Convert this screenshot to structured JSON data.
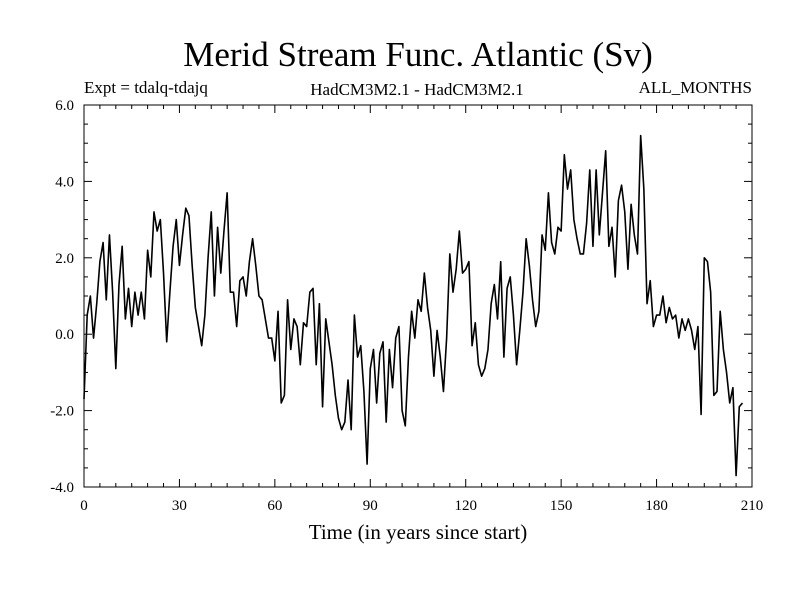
{
  "chart_data": {
    "type": "line",
    "title": "Merid Stream Func. Atlantic (Sv)",
    "subtitle_left": "Expt = tdalq-tdajq",
    "subtitle_center": "HadCM3M2.1 - HadCM3M2.1",
    "subtitle_right": "ALL_MONTHS",
    "xlabel": "Time (in years since start)",
    "ylabel": "",
    "xlim": [
      0,
      210
    ],
    "ylim": [
      -4,
      6
    ],
    "xticks": [
      0,
      30,
      60,
      90,
      120,
      150,
      180,
      210
    ],
    "xtick_labels": [
      "0",
      "30",
      "60",
      "90",
      "120",
      "150",
      "180",
      "210"
    ],
    "yticks": [
      -4,
      -2,
      0,
      2,
      4,
      6
    ],
    "ytick_labels": [
      "-4.0",
      "-2.0",
      "0.0",
      "2.0",
      "4.0",
      "6.0"
    ],
    "line_color": "#000000",
    "series": [
      {
        "name": "tdalq-tdajq",
        "x_start": 0,
        "x_step": 1,
        "values": [
          -1.7,
          0.5,
          1.0,
          -0.1,
          0.8,
          1.9,
          2.4,
          0.9,
          2.6,
          1.1,
          -0.9,
          1.3,
          2.3,
          0.4,
          1.2,
          0.2,
          1.1,
          0.5,
          1.1,
          0.4,
          2.2,
          1.5,
          3.2,
          2.7,
          3.0,
          1.6,
          -0.2,
          1.1,
          2.3,
          3.0,
          1.8,
          2.6,
          3.3,
          3.1,
          1.8,
          0.7,
          0.2,
          -0.3,
          0.5,
          2.0,
          3.2,
          1.0,
          2.8,
          1.6,
          2.7,
          3.7,
          1.1,
          1.1,
          0.2,
          1.4,
          1.5,
          1.0,
          1.9,
          2.5,
          1.8,
          1.0,
          0.9,
          0.4,
          -0.1,
          -0.1,
          -0.7,
          0.6,
          -1.8,
          -1.6,
          0.9,
          -0.4,
          0.4,
          0.2,
          -0.8,
          0.3,
          0.2,
          1.1,
          1.2,
          -0.8,
          0.8,
          -1.9,
          0.4,
          -0.2,
          -0.8,
          -1.6,
          -2.2,
          -2.5,
          -2.3,
          -1.2,
          -2.5,
          0.5,
          -0.6,
          -0.3,
          -1.5,
          -3.4,
          -0.9,
          -0.4,
          -1.8,
          -0.5,
          -0.2,
          -2.3,
          -0.4,
          -1.4,
          -0.1,
          0.2,
          -2.0,
          -2.4,
          -0.6,
          0.6,
          -0.1,
          0.9,
          0.6,
          1.6,
          0.7,
          0.1,
          -1.1,
          0.1,
          -0.6,
          -1.5,
          -0.1,
          2.1,
          1.1,
          1.7,
          2.7,
          1.6,
          1.7,
          1.9,
          -0.3,
          0.3,
          -0.8,
          -1.1,
          -0.9,
          -0.4,
          0.8,
          1.3,
          0.4,
          1.9,
          -0.6,
          1.2,
          1.5,
          0.5,
          -0.8,
          0.1,
          1.1,
          2.5,
          1.8,
          0.9,
          0.2,
          0.6,
          2.6,
          2.2,
          3.7,
          2.4,
          2.1,
          2.8,
          2.7,
          4.7,
          3.8,
          4.3,
          3.0,
          2.5,
          2.1,
          2.1,
          2.9,
          4.3,
          2.3,
          4.3,
          2.6,
          3.7,
          4.8,
          2.3,
          2.8,
          1.5,
          3.5,
          3.9,
          3.2,
          1.7,
          3.4,
          2.6,
          2.1,
          5.2,
          3.8,
          0.8,
          1.4,
          0.2,
          0.5,
          0.5,
          1.0,
          0.3,
          0.7,
          0.4,
          0.5,
          -0.1,
          0.4,
          0.1,
          0.4,
          0.1,
          -0.4,
          0.2,
          -2.1,
          2.0,
          1.9,
          1.1,
          -1.6,
          -1.5,
          0.6,
          -0.4,
          -1.0,
          -1.8,
          -1.4,
          -3.7,
          -1.9,
          -1.8
        ]
      }
    ]
  }
}
